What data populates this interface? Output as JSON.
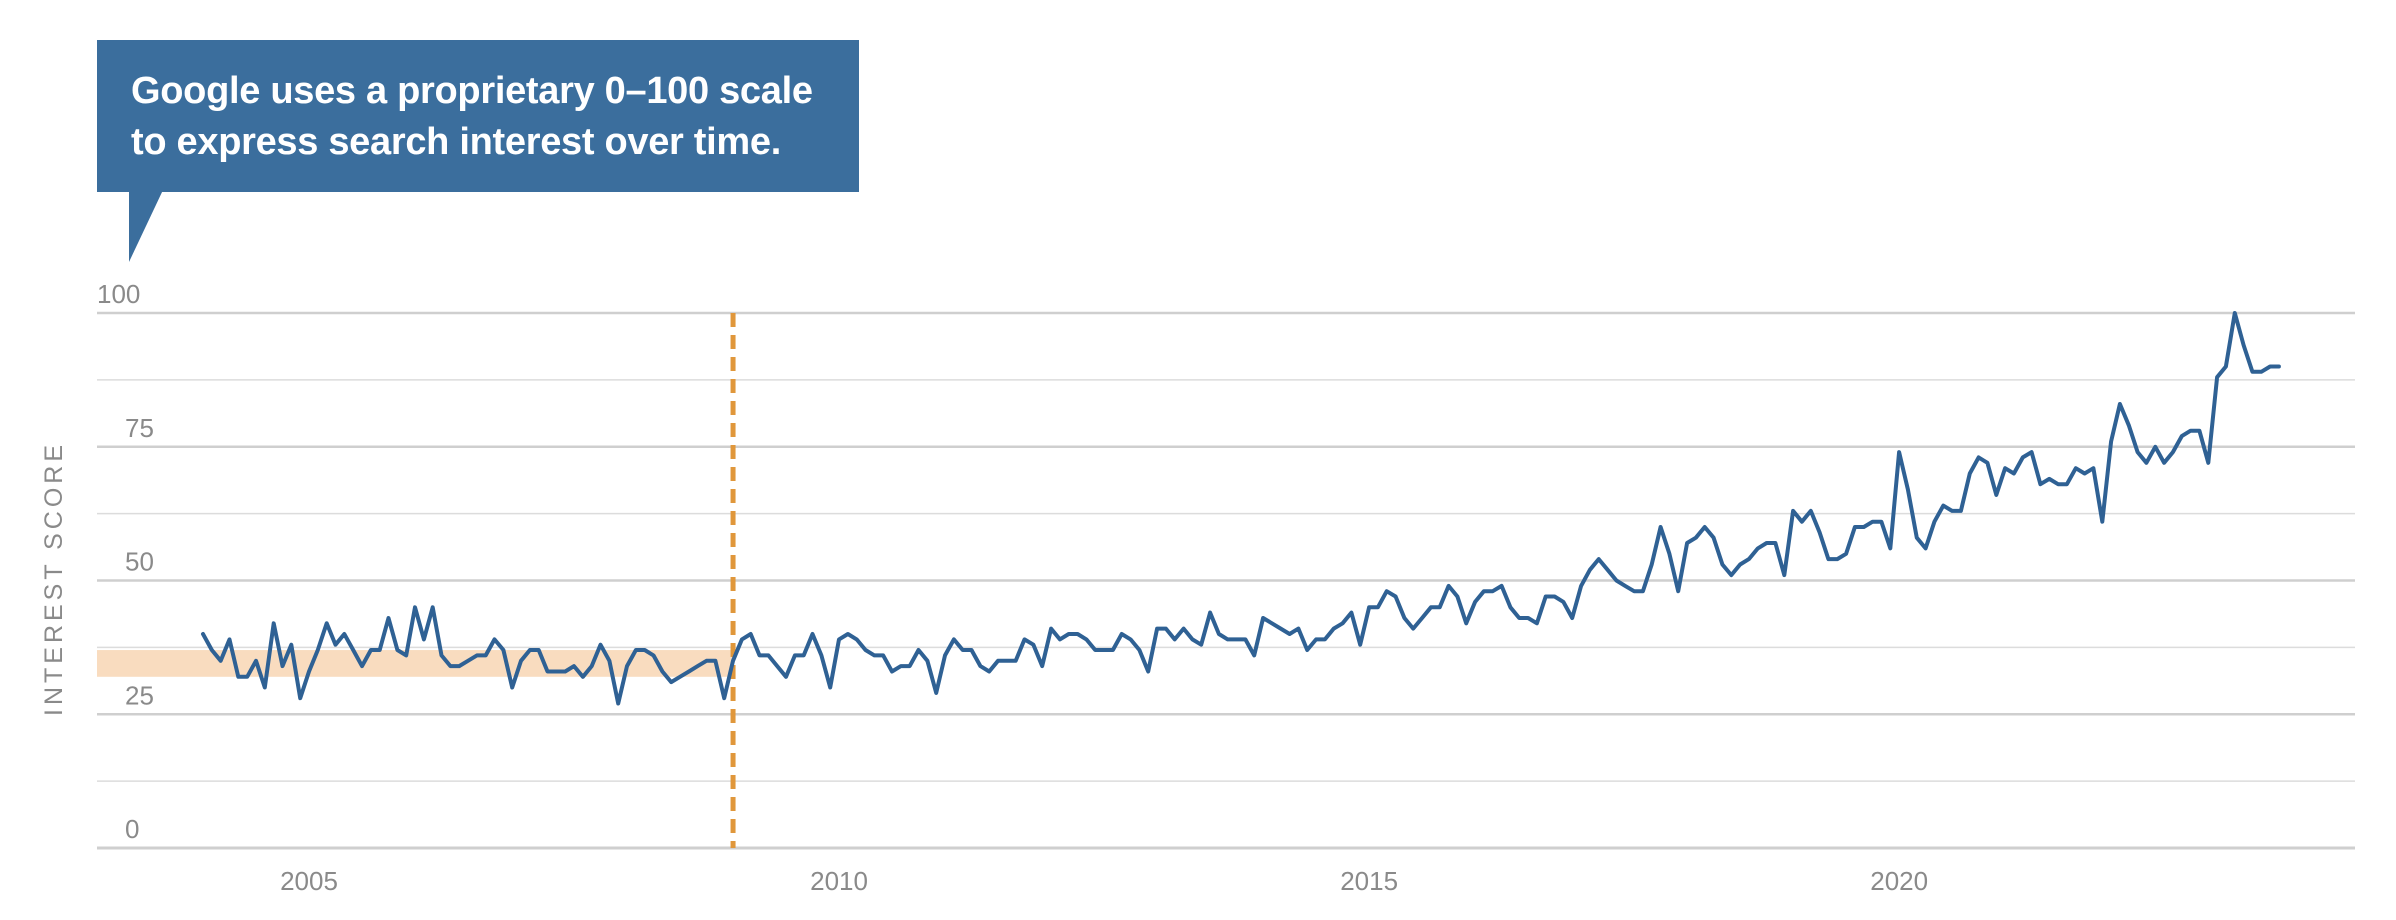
{
  "callout": {
    "line1": "Google uses a proprietary 0–100 scale",
    "line2": "to express search interest over time."
  },
  "colors": {
    "callout_bg": "#3b6e9d",
    "line": "#2f6194",
    "band": "#f9dcbf",
    "marker": "#e0973b",
    "grid": "#dcdcdc",
    "grid_major": "#cfcfcf"
  },
  "chart_data": {
    "type": "line",
    "title": "",
    "xlabel": "",
    "ylabel": "INTEREST SCORE",
    "ylim": [
      0,
      100
    ],
    "xlim": [
      2003.0,
      2024.3
    ],
    "y_ticks": [
      0,
      25,
      50,
      75,
      100
    ],
    "x_ticks": [
      2005,
      2010,
      2015,
      2020
    ],
    "grid": true,
    "reference_line": {
      "x": 2009.0,
      "style": "dashed"
    },
    "shaded_band": {
      "y_from": 32,
      "y_to": 37,
      "x_from": 2003.0,
      "x_to": 2009.0
    },
    "series": [
      {
        "start": 2004.0,
        "step": 0.08333,
        "values": [
          40,
          37,
          35,
          39,
          32,
          32,
          35,
          30,
          42,
          34,
          38,
          28,
          33,
          37,
          42,
          38,
          40,
          37,
          34,
          37,
          37,
          43,
          37,
          36,
          45,
          39,
          45,
          36,
          34,
          34,
          35,
          36,
          36,
          39,
          37,
          30,
          35,
          37,
          37,
          33,
          33,
          33,
          34,
          32,
          34,
          38,
          35,
          27,
          34,
          37,
          37,
          36,
          33,
          31,
          32,
          33,
          34,
          35,
          35,
          28,
          35,
          39,
          40,
          36,
          36,
          34,
          32,
          36,
          36,
          40,
          36,
          30,
          39,
          40,
          39,
          37,
          36,
          36,
          33,
          34,
          34,
          37,
          35,
          29,
          36,
          39,
          37,
          37,
          34,
          33,
          35,
          35,
          35,
          39,
          38,
          34,
          41,
          39,
          40,
          40,
          39,
          37,
          37,
          37,
          40,
          39,
          37,
          33,
          41,
          41,
          39,
          41,
          39,
          38,
          44,
          40,
          39,
          39,
          39,
          36,
          43,
          42,
          41,
          40,
          41,
          37,
          39,
          39,
          41,
          42,
          44,
          38,
          45,
          45,
          48,
          47,
          43,
          41,
          43,
          45,
          45,
          49,
          47,
          42,
          46,
          48,
          48,
          49,
          45,
          43,
          43,
          42,
          47,
          47,
          46,
          43,
          49,
          52,
          54,
          52,
          50,
          49,
          48,
          48,
          53,
          60,
          55,
          48,
          57,
          58,
          60,
          58,
          53,
          51,
          53,
          54,
          56,
          57,
          57,
          51,
          63,
          61,
          63,
          59,
          54,
          54,
          55,
          60,
          60,
          61,
          61,
          56,
          74,
          67,
          58,
          56,
          61,
          64,
          63,
          63,
          70,
          73,
          72,
          66,
          71,
          70,
          73,
          74,
          68,
          69,
          68,
          68,
          71,
          70,
          71,
          61,
          76,
          83,
          79,
          74,
          72,
          75,
          72,
          74,
          77,
          78,
          78,
          72,
          88,
          90,
          100,
          94,
          89,
          89,
          90,
          90
        ]
      }
    ]
  }
}
